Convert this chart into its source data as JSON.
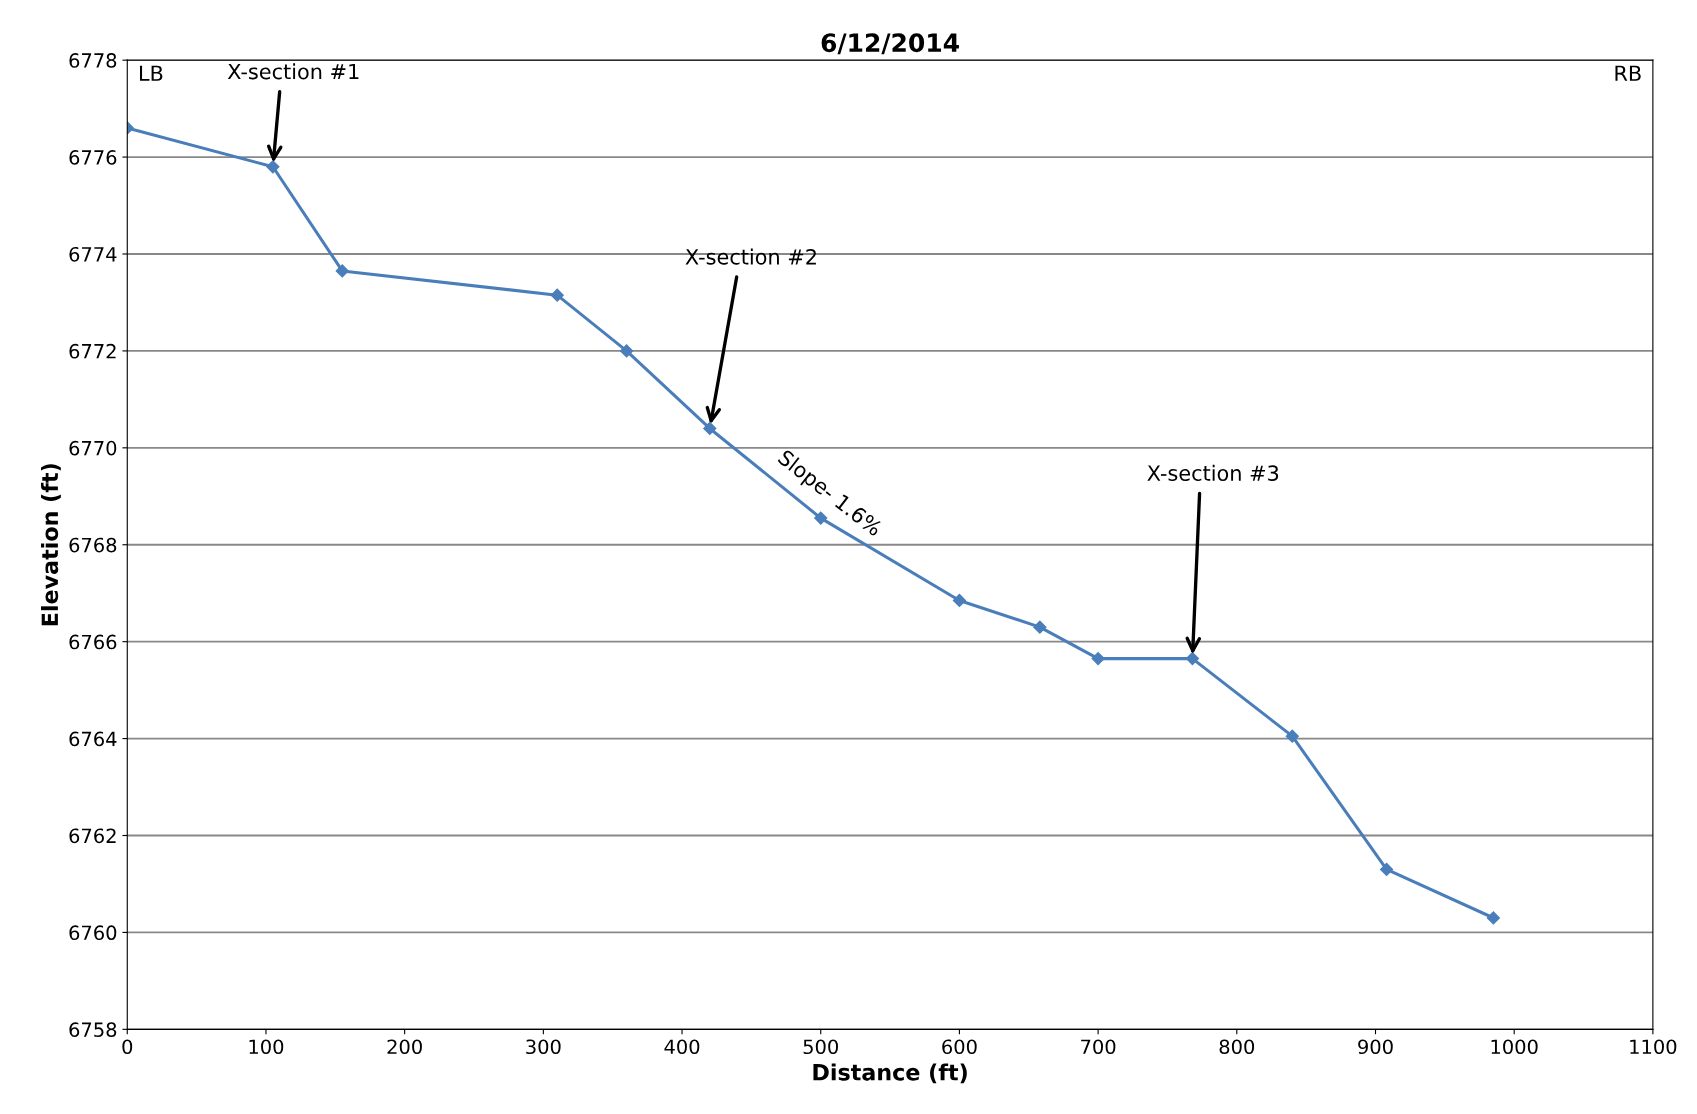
{
  "chart_data": {
    "type": "line",
    "title": "6/12/2014",
    "xlabel": "Distance (ft)",
    "ylabel": "Elevation (ft)",
    "x": [
      0,
      105,
      155,
      310,
      360,
      420,
      500,
      600,
      658,
      700,
      768,
      840,
      908,
      985
    ],
    "series": [
      {
        "color": "#4a7ebb",
        "values": [
          6776.6,
          6775.8,
          6773.65,
          6773.15,
          6772.0,
          6770.4,
          6768.55,
          6766.85,
          6766.3,
          6765.65,
          6765.65,
          6764.05,
          6761.3,
          6760.3
        ]
      }
    ],
    "xlim": [
      0,
      1100
    ],
    "xticks": [
      0,
      100,
      200,
      300,
      400,
      500,
      600,
      700,
      800,
      900,
      1000,
      1100
    ],
    "ylim": [
      6758,
      6778
    ],
    "yticks": [
      6758,
      6760,
      6762,
      6764,
      6766,
      6768,
      6770,
      6772,
      6774,
      6776,
      6778
    ],
    "grid": "y",
    "marker": "diamond",
    "line_style": "solid",
    "annotations": [
      "LB",
      "RB",
      {
        "text": "X-section #1",
        "x": 105,
        "y": 6775.8
      },
      {
        "text": "X-section #2",
        "x": 420,
        "y": 6770.4
      },
      "Slope- 1.6%",
      {
        "text": "X-section #3",
        "x": 768,
        "y": 6765.65
      }
    ]
  }
}
